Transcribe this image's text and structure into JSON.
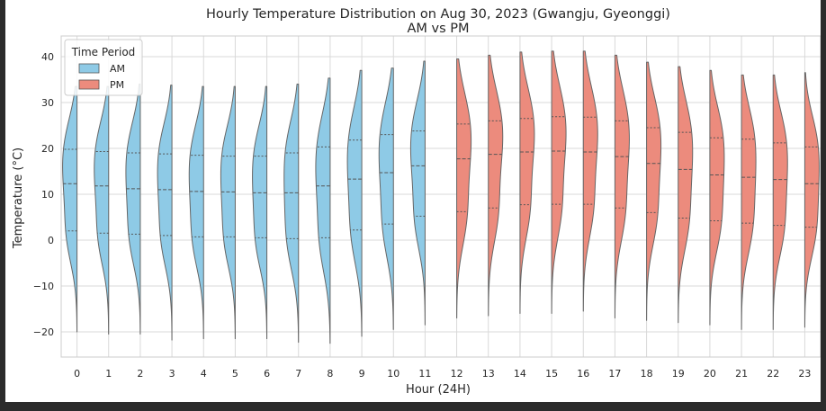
{
  "chart_data": {
    "type": "violin",
    "title": "Hourly Temperature Distribution on Aug 30, 2023 (Gwangju, Gyeonggi)",
    "subtitle": "AM vs PM",
    "xlabel": "Hour (24H)",
    "ylabel": "Temperature (°C)",
    "ylim": [
      -25.5,
      44.5
    ],
    "yticks": [
      -20,
      -10,
      0,
      10,
      20,
      30,
      40
    ],
    "grid": true,
    "categories": [
      "0",
      "1",
      "2",
      "3",
      "4",
      "5",
      "6",
      "7",
      "8",
      "9",
      "10",
      "11",
      "12",
      "13",
      "14",
      "15",
      "16",
      "17",
      "18",
      "19",
      "20",
      "21",
      "22",
      "23"
    ],
    "legend": {
      "title": "Time Period",
      "placement": "top-left",
      "entries": [
        {
          "label": "AM",
          "color": "#8ecae6"
        },
        {
          "label": "PM",
          "color": "#ec8b7d"
        }
      ]
    },
    "series": [
      {
        "name": "AM",
        "color": "#8ecae6",
        "hours": [
          0,
          1,
          2,
          3,
          4,
          5,
          6,
          7,
          8,
          9,
          10,
          11
        ]
      },
      {
        "name": "PM",
        "color": "#ec8b7d",
        "hours": [
          12,
          13,
          14,
          15,
          16,
          17,
          18,
          19,
          20,
          21,
          22,
          23
        ]
      }
    ],
    "violins": [
      {
        "hour": 0,
        "min": -20.0,
        "max": 33.5,
        "q1": 2.0,
        "median": 12.3,
        "q3": 19.8
      },
      {
        "hour": 1,
        "min": -20.5,
        "max": 33.5,
        "q1": 1.5,
        "median": 11.8,
        "q3": 19.3
      },
      {
        "hour": 2,
        "min": -20.5,
        "max": 34.0,
        "q1": 1.3,
        "median": 11.2,
        "q3": 19.0
      },
      {
        "hour": 3,
        "min": -21.8,
        "max": 33.8,
        "q1": 1.0,
        "median": 11.0,
        "q3": 18.8
      },
      {
        "hour": 4,
        "min": -21.5,
        "max": 33.5,
        "q1": 0.7,
        "median": 10.6,
        "q3": 18.5
      },
      {
        "hour": 5,
        "min": -21.5,
        "max": 33.5,
        "q1": 0.7,
        "median": 10.5,
        "q3": 18.3
      },
      {
        "hour": 6,
        "min": -21.5,
        "max": 33.5,
        "q1": 0.5,
        "median": 10.3,
        "q3": 18.3
      },
      {
        "hour": 7,
        "min": -22.3,
        "max": 34.0,
        "q1": 0.3,
        "median": 10.3,
        "q3": 19.0
      },
      {
        "hour": 8,
        "min": -22.5,
        "max": 35.3,
        "q1": 0.5,
        "median": 11.8,
        "q3": 20.3
      },
      {
        "hour": 9,
        "min": -21.0,
        "max": 37.0,
        "q1": 2.2,
        "median": 13.3,
        "q3": 21.8
      },
      {
        "hour": 10,
        "min": -19.5,
        "max": 37.5,
        "q1": 3.5,
        "median": 14.7,
        "q3": 23.0
      },
      {
        "hour": 11,
        "min": -18.5,
        "max": 39.0,
        "q1": 5.2,
        "median": 16.2,
        "q3": 23.8
      },
      {
        "hour": 12,
        "min": -17.0,
        "max": 39.5,
        "q1": 6.2,
        "median": 17.7,
        "q3": 25.3
      },
      {
        "hour": 13,
        "min": -16.5,
        "max": 40.3,
        "q1": 7.0,
        "median": 18.7,
        "q3": 26.0
      },
      {
        "hour": 14,
        "min": -16.0,
        "max": 41.0,
        "q1": 7.7,
        "median": 19.2,
        "q3": 26.5
      },
      {
        "hour": 15,
        "min": -16.0,
        "max": 41.2,
        "q1": 7.8,
        "median": 19.4,
        "q3": 26.9
      },
      {
        "hour": 16,
        "min": -15.5,
        "max": 41.2,
        "q1": 7.8,
        "median": 19.2,
        "q3": 26.8
      },
      {
        "hour": 17,
        "min": -17.0,
        "max": 40.3,
        "q1": 7.0,
        "median": 18.2,
        "q3": 26.0
      },
      {
        "hour": 18,
        "min": -17.5,
        "max": 38.8,
        "q1": 6.0,
        "median": 16.7,
        "q3": 24.5
      },
      {
        "hour": 19,
        "min": -18.0,
        "max": 37.8,
        "q1": 4.8,
        "median": 15.4,
        "q3": 23.5
      },
      {
        "hour": 20,
        "min": -18.5,
        "max": 37.0,
        "q1": 4.2,
        "median": 14.2,
        "q3": 22.3
      },
      {
        "hour": 21,
        "min": -19.5,
        "max": 36.0,
        "q1": 3.7,
        "median": 13.7,
        "q3": 22.0
      },
      {
        "hour": 22,
        "min": -19.5,
        "max": 36.0,
        "q1": 3.2,
        "median": 13.2,
        "q3": 21.2
      },
      {
        "hour": 23,
        "min": -19.0,
        "max": 36.5,
        "q1": 2.8,
        "median": 12.3,
        "q3": 20.3
      }
    ]
  }
}
